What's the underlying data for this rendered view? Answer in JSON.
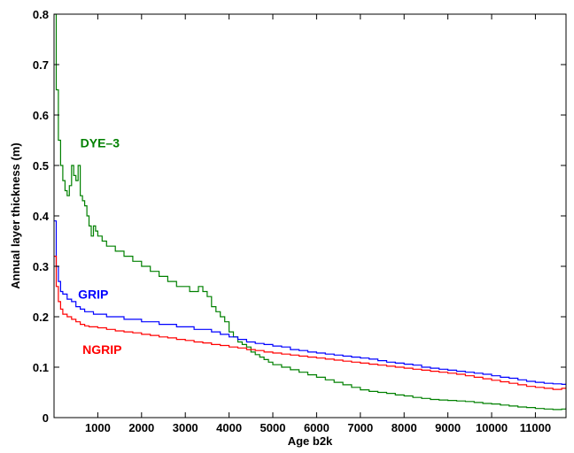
{
  "chart_data": {
    "type": "line",
    "title": "",
    "xlabel": "Age b2k",
    "ylabel": "Annual layer thickness (m)",
    "xlim": [
      0,
      11700
    ],
    "ylim": [
      0,
      0.8
    ],
    "x_ticks": [
      1000,
      2000,
      3000,
      4000,
      5000,
      6000,
      7000,
      8000,
      9000,
      10000,
      11000
    ],
    "y_ticks": [
      0,
      0.1,
      0.2,
      0.3,
      0.4,
      0.5,
      0.6,
      0.7,
      0.8
    ],
    "grid": false,
    "step": true,
    "series": [
      {
        "name": "DYE–3",
        "color": "#008000",
        "points": [
          [
            0,
            0.8
          ],
          [
            50,
            0.65
          ],
          [
            100,
            0.55
          ],
          [
            150,
            0.5
          ],
          [
            200,
            0.47
          ],
          [
            250,
            0.45
          ],
          [
            300,
            0.44
          ],
          [
            350,
            0.46
          ],
          [
            400,
            0.5
          ],
          [
            450,
            0.48
          ],
          [
            500,
            0.47
          ],
          [
            550,
            0.5
          ],
          [
            600,
            0.44
          ],
          [
            650,
            0.43
          ],
          [
            700,
            0.42
          ],
          [
            750,
            0.4
          ],
          [
            800,
            0.38
          ],
          [
            850,
            0.36
          ],
          [
            900,
            0.38
          ],
          [
            950,
            0.37
          ],
          [
            1000,
            0.36
          ],
          [
            1100,
            0.35
          ],
          [
            1200,
            0.34
          ],
          [
            1300,
            0.34
          ],
          [
            1400,
            0.33
          ],
          [
            1500,
            0.33
          ],
          [
            1600,
            0.32
          ],
          [
            1700,
            0.32
          ],
          [
            1800,
            0.31
          ],
          [
            1900,
            0.31
          ],
          [
            2000,
            0.3
          ],
          [
            2100,
            0.3
          ],
          [
            2200,
            0.29
          ],
          [
            2300,
            0.29
          ],
          [
            2400,
            0.28
          ],
          [
            2500,
            0.28
          ],
          [
            2600,
            0.27
          ],
          [
            2700,
            0.27
          ],
          [
            2800,
            0.26
          ],
          [
            2900,
            0.26
          ],
          [
            3000,
            0.26
          ],
          [
            3100,
            0.25
          ],
          [
            3200,
            0.25
          ],
          [
            3300,
            0.26
          ],
          [
            3400,
            0.25
          ],
          [
            3500,
            0.24
          ],
          [
            3600,
            0.22
          ],
          [
            3700,
            0.21
          ],
          [
            3800,
            0.2
          ],
          [
            3900,
            0.19
          ],
          [
            4000,
            0.17
          ],
          [
            4100,
            0.16
          ],
          [
            4200,
            0.15
          ],
          [
            4300,
            0.145
          ],
          [
            4400,
            0.14
          ],
          [
            4500,
            0.13
          ],
          [
            4600,
            0.125
          ],
          [
            4700,
            0.12
          ],
          [
            4800,
            0.115
          ],
          [
            4900,
            0.11
          ],
          [
            5000,
            0.105
          ],
          [
            5200,
            0.1
          ],
          [
            5400,
            0.095
          ],
          [
            5600,
            0.09
          ],
          [
            5800,
            0.085
          ],
          [
            6000,
            0.08
          ],
          [
            6200,
            0.075
          ],
          [
            6400,
            0.07
          ],
          [
            6600,
            0.065
          ],
          [
            6800,
            0.06
          ],
          [
            7000,
            0.055
          ],
          [
            7200,
            0.052
          ],
          [
            7400,
            0.05
          ],
          [
            7600,
            0.048
          ],
          [
            7800,
            0.045
          ],
          [
            8000,
            0.043
          ],
          [
            8200,
            0.04
          ],
          [
            8400,
            0.038
          ],
          [
            8600,
            0.036
          ],
          [
            8800,
            0.035
          ],
          [
            9000,
            0.034
          ],
          [
            9200,
            0.033
          ],
          [
            9400,
            0.032
          ],
          [
            9600,
            0.03
          ],
          [
            9800,
            0.028
          ],
          [
            10000,
            0.027
          ],
          [
            10200,
            0.025
          ],
          [
            10400,
            0.023
          ],
          [
            10600,
            0.021
          ],
          [
            10800,
            0.02
          ],
          [
            11000,
            0.018
          ],
          [
            11200,
            0.017
          ],
          [
            11400,
            0.016
          ],
          [
            11600,
            0.017
          ],
          [
            11700,
            0.02
          ]
        ]
      },
      {
        "name": "GRIP",
        "color": "#0000ff",
        "points": [
          [
            0,
            0.39
          ],
          [
            50,
            0.3
          ],
          [
            100,
            0.27
          ],
          [
            150,
            0.25
          ],
          [
            200,
            0.245
          ],
          [
            300,
            0.235
          ],
          [
            400,
            0.23
          ],
          [
            500,
            0.22
          ],
          [
            600,
            0.215
          ],
          [
            700,
            0.21
          ],
          [
            800,
            0.21
          ],
          [
            900,
            0.205
          ],
          [
            1000,
            0.205
          ],
          [
            1200,
            0.2
          ],
          [
            1400,
            0.2
          ],
          [
            1600,
            0.195
          ],
          [
            1800,
            0.195
          ],
          [
            2000,
            0.19
          ],
          [
            2200,
            0.19
          ],
          [
            2400,
            0.185
          ],
          [
            2600,
            0.185
          ],
          [
            2800,
            0.18
          ],
          [
            3000,
            0.18
          ],
          [
            3200,
            0.175
          ],
          [
            3400,
            0.175
          ],
          [
            3600,
            0.17
          ],
          [
            3800,
            0.165
          ],
          [
            4000,
            0.16
          ],
          [
            4200,
            0.155
          ],
          [
            4400,
            0.15
          ],
          [
            4600,
            0.147
          ],
          [
            4800,
            0.145
          ],
          [
            5000,
            0.142
          ],
          [
            5200,
            0.14
          ],
          [
            5400,
            0.135
          ],
          [
            5600,
            0.133
          ],
          [
            5800,
            0.13
          ],
          [
            6000,
            0.128
          ],
          [
            6200,
            0.126
          ],
          [
            6400,
            0.124
          ],
          [
            6600,
            0.122
          ],
          [
            6800,
            0.12
          ],
          [
            7000,
            0.118
          ],
          [
            7200,
            0.116
          ],
          [
            7400,
            0.113
          ],
          [
            7600,
            0.11
          ],
          [
            7800,
            0.108
          ],
          [
            8000,
            0.106
          ],
          [
            8200,
            0.104
          ],
          [
            8400,
            0.1
          ],
          [
            8600,
            0.098
          ],
          [
            8800,
            0.096
          ],
          [
            9000,
            0.094
          ],
          [
            9200,
            0.092
          ],
          [
            9400,
            0.09
          ],
          [
            9600,
            0.088
          ],
          [
            9800,
            0.086
          ],
          [
            10000,
            0.083
          ],
          [
            10200,
            0.08
          ],
          [
            10400,
            0.078
          ],
          [
            10600,
            0.075
          ],
          [
            10800,
            0.072
          ],
          [
            11000,
            0.07
          ],
          [
            11200,
            0.068
          ],
          [
            11400,
            0.067
          ],
          [
            11600,
            0.066
          ],
          [
            11700,
            0.068
          ]
        ]
      },
      {
        "name": "NGRIP",
        "color": "#ff0000",
        "points": [
          [
            0,
            0.32
          ],
          [
            50,
            0.26
          ],
          [
            100,
            0.23
          ],
          [
            150,
            0.215
          ],
          [
            200,
            0.205
          ],
          [
            300,
            0.2
          ],
          [
            400,
            0.195
          ],
          [
            500,
            0.19
          ],
          [
            600,
            0.185
          ],
          [
            700,
            0.182
          ],
          [
            800,
            0.18
          ],
          [
            1000,
            0.178
          ],
          [
            1200,
            0.175
          ],
          [
            1400,
            0.172
          ],
          [
            1600,
            0.17
          ],
          [
            1800,
            0.168
          ],
          [
            2000,
            0.165
          ],
          [
            2200,
            0.163
          ],
          [
            2400,
            0.16
          ],
          [
            2600,
            0.158
          ],
          [
            2800,
            0.155
          ],
          [
            3000,
            0.153
          ],
          [
            3200,
            0.15
          ],
          [
            3400,
            0.148
          ],
          [
            3600,
            0.145
          ],
          [
            3800,
            0.143
          ],
          [
            4000,
            0.14
          ],
          [
            4200,
            0.138
          ],
          [
            4400,
            0.135
          ],
          [
            4600,
            0.133
          ],
          [
            4800,
            0.13
          ],
          [
            5000,
            0.128
          ],
          [
            5200,
            0.126
          ],
          [
            5400,
            0.124
          ],
          [
            5600,
            0.122
          ],
          [
            5800,
            0.12
          ],
          [
            6000,
            0.118
          ],
          [
            6200,
            0.116
          ],
          [
            6400,
            0.114
          ],
          [
            6600,
            0.112
          ],
          [
            6800,
            0.11
          ],
          [
            7000,
            0.108
          ],
          [
            7200,
            0.106
          ],
          [
            7400,
            0.104
          ],
          [
            7600,
            0.102
          ],
          [
            7800,
            0.1
          ],
          [
            8000,
            0.098
          ],
          [
            8200,
            0.096
          ],
          [
            8400,
            0.094
          ],
          [
            8600,
            0.092
          ],
          [
            8800,
            0.09
          ],
          [
            9000,
            0.088
          ],
          [
            9200,
            0.086
          ],
          [
            9400,
            0.083
          ],
          [
            9600,
            0.08
          ],
          [
            9800,
            0.077
          ],
          [
            10000,
            0.074
          ],
          [
            10200,
            0.071
          ],
          [
            10400,
            0.068
          ],
          [
            10600,
            0.065
          ],
          [
            10800,
            0.062
          ],
          [
            11000,
            0.06
          ],
          [
            11200,
            0.058
          ],
          [
            11400,
            0.056
          ],
          [
            11600,
            0.058
          ],
          [
            11700,
            0.06
          ]
        ]
      }
    ],
    "annotations": [
      {
        "text": "DYE–3",
        "x": 600,
        "y": 0.545,
        "color": "#008000"
      },
      {
        "text": "GRIP",
        "x": 550,
        "y": 0.245,
        "color": "#0000ff"
      },
      {
        "text": "NGRIP",
        "x": 650,
        "y": 0.135,
        "color": "#ff0000"
      }
    ]
  }
}
